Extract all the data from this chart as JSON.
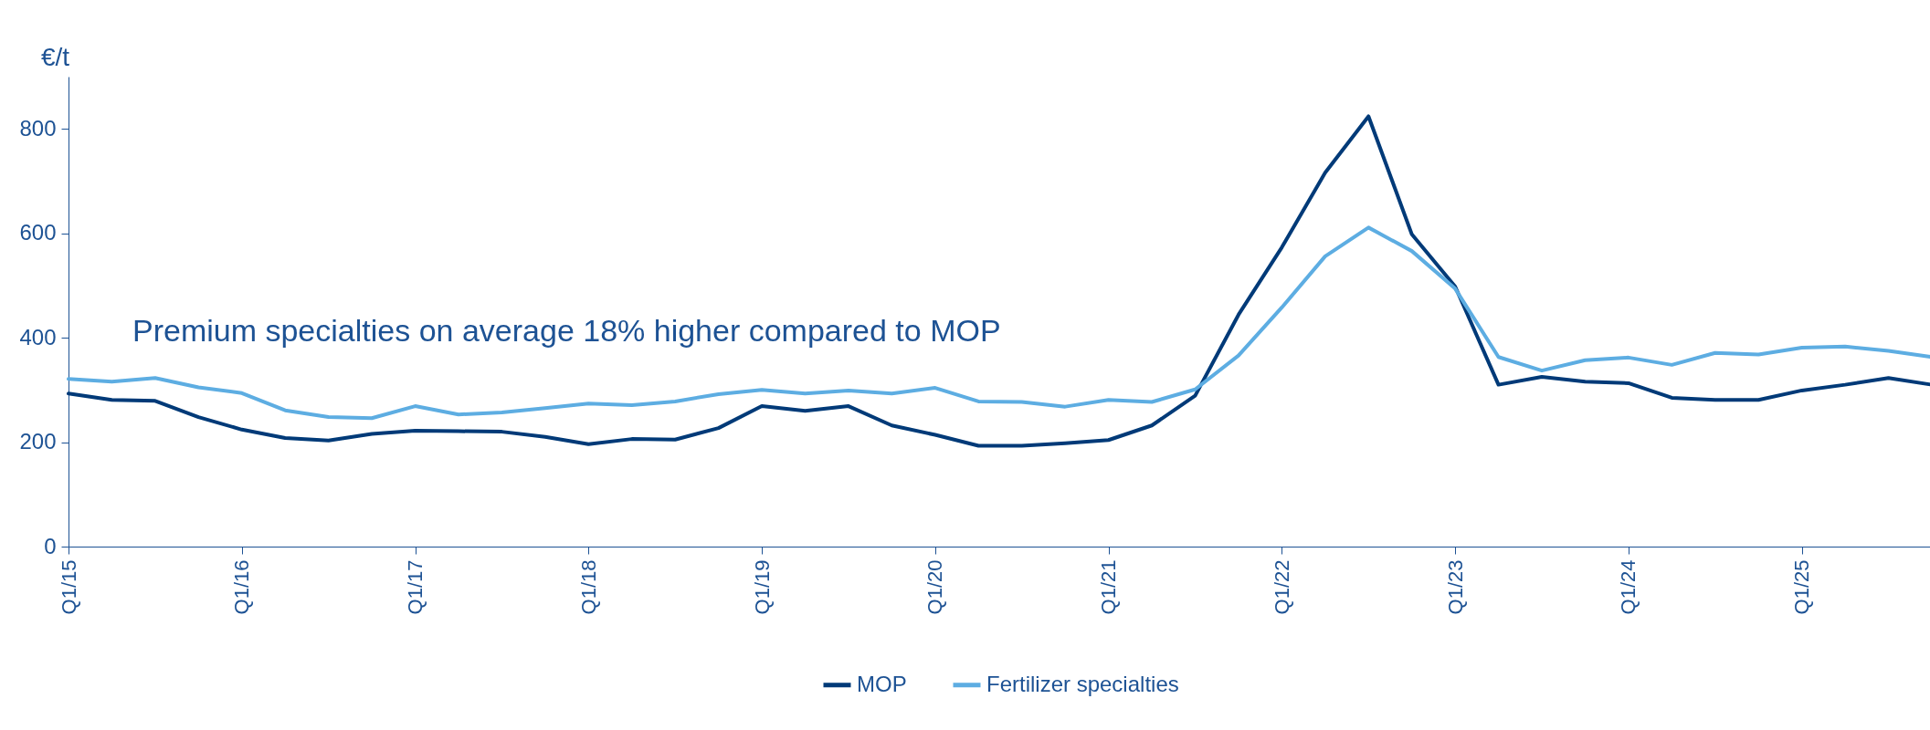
{
  "chart_data": {
    "type": "line",
    "ylabel": "€/t",
    "annotations": [
      "Premium specialties on average 18% higher compared to MOP"
    ],
    "categories": [
      "Q1/15",
      null,
      null,
      null,
      "Q1/16",
      null,
      null,
      null,
      "Q1/17",
      null,
      null,
      null,
      "Q1/18",
      null,
      null,
      null,
      "Q1/19",
      null,
      null,
      null,
      "Q1/20",
      null,
      null,
      null,
      "Q1/21",
      null,
      null,
      null,
      "Q1/22",
      null,
      null,
      null,
      "Q1/23",
      null,
      null,
      null,
      "Q1/24",
      null,
      null,
      null,
      "Q1/25",
      null,
      null,
      null
    ],
    "series": [
      {
        "name": "MOP",
        "color": "#003a78",
        "values": [
          293,
          281,
          279,
          248,
          224,
          208,
          203,
          216,
          222,
          221,
          220,
          210,
          196,
          206,
          205,
          227,
          269,
          260,
          269,
          232,
          214,
          193,
          193,
          198,
          204,
          232,
          289,
          444,
          573,
          716,
          824,
          598,
          498,
          310,
          325,
          316,
          313,
          285,
          281,
          281,
          299,
          310,
          323,
          310
        ]
      },
      {
        "name": "Fertilizer specialties",
        "color": "#5dade2",
        "values": [
          321,
          316,
          323,
          305,
          294,
          261,
          248,
          246,
          269,
          253,
          257,
          265,
          274,
          271,
          278,
          292,
          300,
          293,
          299,
          293,
          304,
          278,
          277,
          268,
          281,
          277,
          301,
          366,
          458,
          556,
          611,
          566,
          494,
          363,
          337,
          357,
          362,
          348,
          371,
          368,
          381,
          383,
          375,
          363
        ]
      }
    ],
    "ylim": [
      0,
      900
    ],
    "yticks": [
      0,
      200,
      400,
      600,
      800
    ],
    "grid": false,
    "legend": "bottom",
    "line_style": "solid",
    "marker": "none"
  }
}
